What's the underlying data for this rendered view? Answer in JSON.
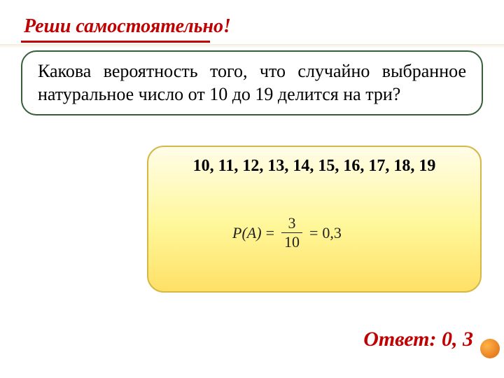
{
  "title": {
    "text": "Реши самостоятельно!",
    "color": "#c00000",
    "fontsize": 28,
    "underline_color": "#c00000"
  },
  "problem": {
    "text": "Какова вероятность того, что случайно выбранное натуральное число от 10 до 19 делится на три?",
    "border_color": "#385d3a",
    "fontsize": 26
  },
  "solution": {
    "numbers_line": "10, 11, 12, 13, 14, 15, 16, 17, 18, 19",
    "formula": {
      "lhs": "P(A)",
      "numerator": "3",
      "denominator": "10",
      "result": "0,3"
    },
    "border_color": "#d4b84a",
    "bg_gradient_top": "#fffde8",
    "bg_gradient_bottom": "#ffe066"
  },
  "answer": {
    "label": "Ответ:",
    "value": "0, 3",
    "color": "#c00000",
    "fontsize": 30
  }
}
